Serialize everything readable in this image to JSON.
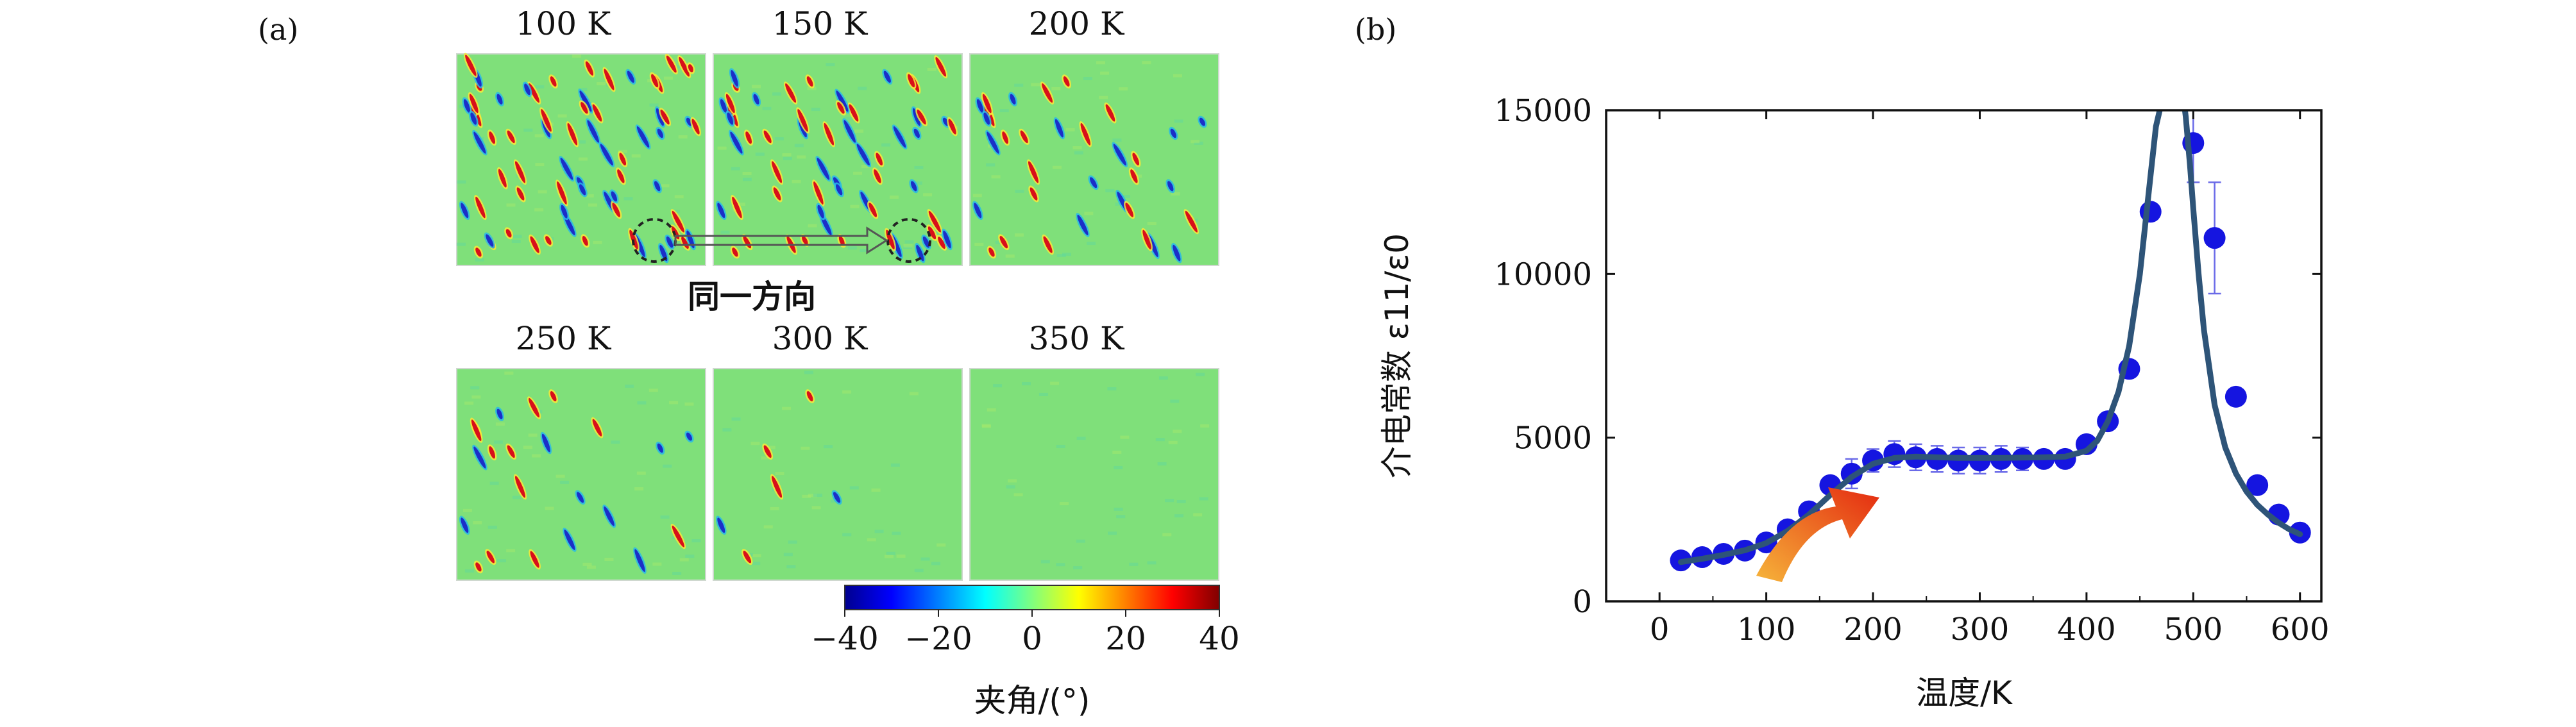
{
  "panel_a": {
    "label": "(a)",
    "temperatures": [
      "100 K",
      "150 K",
      "200 K",
      "250 K",
      "300 K",
      "350 K"
    ],
    "domain_density": [
      1.0,
      0.85,
      0.5,
      0.32,
      0.08,
      0.0
    ],
    "annotation": "同一方向",
    "colorbar": {
      "ticks": [
        "−40",
        "−20",
        "0",
        "20",
        "40"
      ],
      "tick_values": [
        -40,
        -20,
        0,
        20,
        40
      ],
      "range": [
        -40,
        40
      ],
      "colormap": "jet",
      "title": "夹角/(°)"
    },
    "colors": {
      "background": "#7fe07a",
      "domain_positive": "#d8101a",
      "domain_negative": "#1b2fc8",
      "highlight_positive": "#f7e83a",
      "highlight_negative": "#28b8e8"
    }
  },
  "chart_data": {
    "type": "scatter",
    "label": "(b)",
    "xlabel": "温度/K",
    "ylabel": "介电常数 ε11/ε0",
    "xlim": [
      -50,
      620
    ],
    "ylim": [
      0,
      15000
    ],
    "xticks": [
      0,
      100,
      200,
      300,
      400,
      500,
      600
    ],
    "yticks": [
      0,
      5000,
      10000,
      15000
    ],
    "series": [
      {
        "kind": "points",
        "color": "#1515e0",
        "x": [
          20,
          40,
          60,
          80,
          100,
          120,
          140,
          160,
          180,
          200,
          220,
          240,
          260,
          280,
          300,
          320,
          340,
          360,
          380,
          400,
          420,
          440,
          460,
          500,
          520,
          540,
          560,
          580,
          600
        ],
        "y": [
          1250,
          1350,
          1450,
          1550,
          1800,
          2200,
          2750,
          3550,
          3900,
          4300,
          4500,
          4400,
          4350,
          4300,
          4300,
          4350,
          4350,
          4350,
          4350,
          4800,
          5500,
          7100,
          11900,
          14000,
          11100,
          6250,
          3550,
          2650,
          2100
        ],
        "yerr": [
          0,
          0,
          0,
          0,
          0,
          0,
          0,
          0,
          450,
          350,
          400,
          400,
          400,
          400,
          400,
          400,
          350,
          0,
          0,
          0,
          0,
          0,
          0,
          1200,
          1700,
          0,
          0,
          0,
          0
        ]
      },
      {
        "kind": "fit-curve",
        "color": "#2e5478",
        "x": [
          20,
          40,
          60,
          80,
          100,
          120,
          140,
          160,
          180,
          200,
          220,
          240,
          260,
          280,
          300,
          320,
          340,
          360,
          380,
          400,
          410,
          420,
          430,
          440,
          450,
          460,
          465,
          470,
          472
        ],
        "y": [
          1200,
          1300,
          1420,
          1560,
          1780,
          2150,
          2650,
          3250,
          3800,
          4200,
          4380,
          4420,
          4400,
          4380,
          4380,
          4380,
          4390,
          4400,
          4420,
          4600,
          4900,
          5500,
          6400,
          7800,
          10000,
          13000,
          14500,
          15200,
          15600
        ]
      },
      {
        "kind": "fit-curve",
        "color": "#2e5478",
        "x": [
          490,
          493,
          497,
          500,
          505,
          510,
          520,
          530,
          540,
          550,
          560,
          570,
          580,
          590,
          600
        ],
        "y": [
          15600,
          14800,
          13300,
          12000,
          10000,
          8300,
          6000,
          4700,
          3900,
          3350,
          2950,
          2650,
          2400,
          2200,
          2050
        ]
      }
    ],
    "annotation_arrow": {
      "from": [
        130,
        350
      ],
      "to": [
        210,
        1300
      ],
      "colors": [
        "#f6b43a",
        "#e42a10"
      ]
    }
  }
}
